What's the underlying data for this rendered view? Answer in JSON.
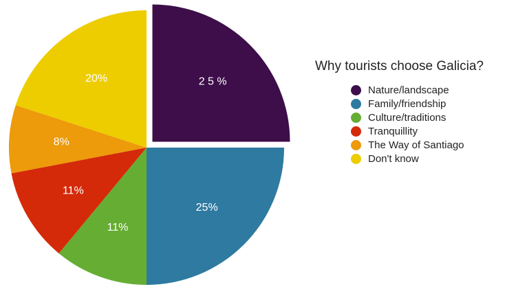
{
  "chart_data": {
    "type": "pie",
    "title": "Why tourists choose Galicia?",
    "legend_position": "right",
    "slices": [
      {
        "label": "Nature/landscape",
        "value": 25,
        "display": "2 5 %",
        "color": "#3d0e4a",
        "exploded": true
      },
      {
        "label": "Family/friendship",
        "value": 25,
        "display": "25%",
        "color": "#2e7aa1"
      },
      {
        "label": "Culture/traditions",
        "value": 11,
        "display": "11%",
        "color": "#66ad33"
      },
      {
        "label": "Tranquillity",
        "value": 11,
        "display": "11%",
        "color": "#d42a0a"
      },
      {
        "label": "The Way of Santiago",
        "value": 8,
        "display": "8%",
        "color": "#ed9a0b"
      },
      {
        "label": "Don't know",
        "value": 20,
        "display": "20%",
        "color": "#edcd00"
      }
    ]
  }
}
